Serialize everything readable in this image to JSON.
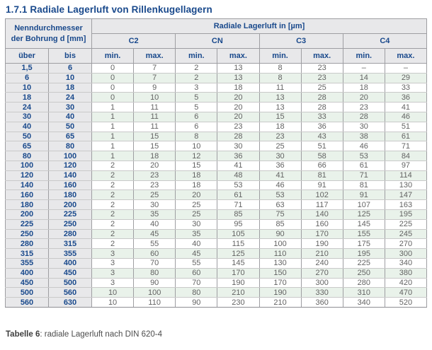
{
  "title": "1.7.1 Radiale Lagerluft von Rillenkugellagern",
  "table": {
    "bore_header_line1": "Nenndurchmesser",
    "bore_header_line2": "der Bohrung d [mm]",
    "clearance_header": "Radiale Lagerluft in [µm]",
    "classes": [
      "C2",
      "CN",
      "C3",
      "C4"
    ],
    "over_label": "über",
    "to_label": "bis",
    "min_label": "min.",
    "max_label": "max.",
    "value_column_order": [
      "C2 min.",
      "C2 max.",
      "CN min.",
      "CN max.",
      "C3 min.",
      "C3 max.",
      "C4 min.",
      "C4 max."
    ],
    "rows": [
      {
        "over": "1,5",
        "to": "6",
        "values": [
          "0",
          "7",
          "2",
          "13",
          "8",
          "23",
          "–",
          "–"
        ]
      },
      {
        "over": "6",
        "to": "10",
        "values": [
          "0",
          "7",
          "2",
          "13",
          "8",
          "23",
          "14",
          "29"
        ]
      },
      {
        "over": "10",
        "to": "18",
        "values": [
          "0",
          "9",
          "3",
          "18",
          "11",
          "25",
          "18",
          "33"
        ]
      },
      {
        "over": "18",
        "to": "24",
        "values": [
          "0",
          "10",
          "5",
          "20",
          "13",
          "28",
          "20",
          "36"
        ]
      },
      {
        "over": "24",
        "to": "30",
        "values": [
          "1",
          "11",
          "5",
          "20",
          "13",
          "28",
          "23",
          "41"
        ]
      },
      {
        "over": "30",
        "to": "40",
        "values": [
          "1",
          "11",
          "6",
          "20",
          "15",
          "33",
          "28",
          "46"
        ]
      },
      {
        "over": "40",
        "to": "50",
        "values": [
          "1",
          "11",
          "6",
          "23",
          "18",
          "36",
          "30",
          "51"
        ]
      },
      {
        "over": "50",
        "to": "65",
        "values": [
          "1",
          "15",
          "8",
          "28",
          "23",
          "43",
          "38",
          "61"
        ]
      },
      {
        "over": "65",
        "to": "80",
        "values": [
          "1",
          "15",
          "10",
          "30",
          "25",
          "51",
          "46",
          "71"
        ]
      },
      {
        "over": "80",
        "to": "100",
        "values": [
          "1",
          "18",
          "12",
          "36",
          "30",
          "58",
          "53",
          "84"
        ]
      },
      {
        "over": "100",
        "to": "120",
        "values": [
          "2",
          "20",
          "15",
          "41",
          "36",
          "66",
          "61",
          "97"
        ]
      },
      {
        "over": "120",
        "to": "140",
        "values": [
          "2",
          "23",
          "18",
          "48",
          "41",
          "81",
          "71",
          "114"
        ]
      },
      {
        "over": "140",
        "to": "160",
        "values": [
          "2",
          "23",
          "18",
          "53",
          "46",
          "91",
          "81",
          "130"
        ]
      },
      {
        "over": "160",
        "to": "180",
        "values": [
          "2",
          "25",
          "20",
          "61",
          "53",
          "102",
          "91",
          "147"
        ]
      },
      {
        "over": "180",
        "to": "200",
        "values": [
          "2",
          "30",
          "25",
          "71",
          "63",
          "117",
          "107",
          "163"
        ]
      },
      {
        "over": "200",
        "to": "225",
        "values": [
          "2",
          "35",
          "25",
          "85",
          "75",
          "140",
          "125",
          "195"
        ]
      },
      {
        "over": "225",
        "to": "250",
        "values": [
          "2",
          "40",
          "30",
          "95",
          "85",
          "160",
          "145",
          "225"
        ]
      },
      {
        "over": "250",
        "to": "280",
        "values": [
          "2",
          "45",
          "35",
          "105",
          "90",
          "170",
          "155",
          "245"
        ]
      },
      {
        "over": "280",
        "to": "315",
        "values": [
          "2",
          "55",
          "40",
          "115",
          "100",
          "190",
          "175",
          "270"
        ]
      },
      {
        "over": "315",
        "to": "355",
        "values": [
          "3",
          "60",
          "45",
          "125",
          "110",
          "210",
          "195",
          "300"
        ]
      },
      {
        "over": "355",
        "to": "400",
        "values": [
          "3",
          "70",
          "55",
          "145",
          "130",
          "240",
          "225",
          "340"
        ]
      },
      {
        "over": "400",
        "to": "450",
        "values": [
          "3",
          "80",
          "60",
          "170",
          "150",
          "270",
          "250",
          "380"
        ]
      },
      {
        "over": "450",
        "to": "500",
        "values": [
          "3",
          "90",
          "70",
          "190",
          "170",
          "300",
          "280",
          "420"
        ]
      },
      {
        "over": "500",
        "to": "560",
        "values": [
          "10",
          "100",
          "80",
          "210",
          "190",
          "330",
          "310",
          "470"
        ]
      },
      {
        "over": "560",
        "to": "630",
        "values": [
          "10",
          "110",
          "90",
          "230",
          "210",
          "360",
          "340",
          "520"
        ]
      }
    ]
  },
  "caption": {
    "label": "Tabelle 6",
    "rest": ": radiale Lagerluft nach DIN 620-4"
  },
  "colors": {
    "accent_navy": "#19498c",
    "header_bg": "#e8e8ea",
    "row_alt_green": "#e9f2ea",
    "value_text": "#636363",
    "border_gray": "#9e9ea2"
  }
}
